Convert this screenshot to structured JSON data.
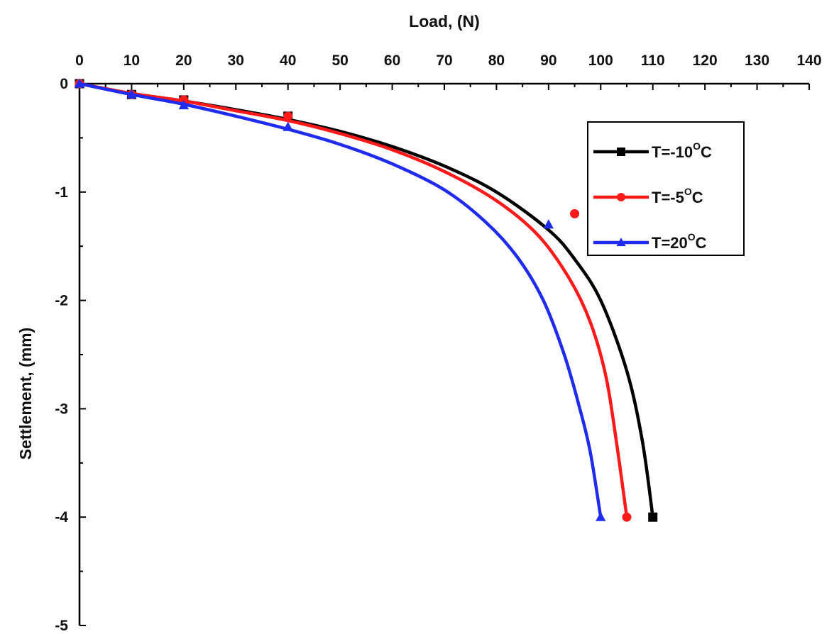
{
  "chart_data": {
    "type": "line",
    "xlabel": "Load, (N)",
    "ylabel": "Settlement, (mm)",
    "xlim": [
      0,
      140
    ],
    "ylim": [
      -5,
      0
    ],
    "x_axis_position": "top",
    "x_ticks": [
      0,
      10,
      20,
      30,
      40,
      50,
      60,
      70,
      80,
      90,
      100,
      110,
      120,
      130,
      140
    ],
    "y_ticks": [
      0,
      -1,
      -2,
      -3,
      -4,
      -5
    ],
    "grid": false,
    "legend_position": "top-right",
    "series": [
      {
        "name": "T=-10",
        "name_superscript": "O",
        "name_suffix": "C",
        "color": "#000000",
        "marker": "square",
        "marker_points": [
          [
            0,
            0
          ],
          [
            10,
            -0.1
          ],
          [
            20,
            -0.15
          ],
          [
            40,
            -0.3
          ],
          [
            110,
            -4
          ]
        ],
        "curve": [
          [
            0,
            0
          ],
          [
            10,
            -0.09
          ],
          [
            20,
            -0.16
          ],
          [
            30,
            -0.24
          ],
          [
            40,
            -0.33
          ],
          [
            50,
            -0.44
          ],
          [
            60,
            -0.58
          ],
          [
            70,
            -0.76
          ],
          [
            80,
            -1.0
          ],
          [
            90,
            -1.35
          ],
          [
            95,
            -1.62
          ],
          [
            100,
            -2.0
          ],
          [
            105,
            -2.65
          ],
          [
            108,
            -3.3
          ],
          [
            110,
            -4.0
          ]
        ]
      },
      {
        "name": "T=-5",
        "name_superscript": "O",
        "name_suffix": "C",
        "color": "#ff1a1a",
        "marker": "circle",
        "marker_points": [
          [
            0,
            0
          ],
          [
            10,
            -0.1
          ],
          [
            20,
            -0.15
          ],
          [
            40,
            -0.3
          ],
          [
            95,
            -1.2
          ],
          [
            105,
            -4
          ]
        ],
        "curve": [
          [
            0,
            0
          ],
          [
            10,
            -0.09
          ],
          [
            20,
            -0.16
          ],
          [
            30,
            -0.25
          ],
          [
            40,
            -0.34
          ],
          [
            50,
            -0.46
          ],
          [
            60,
            -0.61
          ],
          [
            70,
            -0.81
          ],
          [
            80,
            -1.08
          ],
          [
            88,
            -1.4
          ],
          [
            94,
            -1.8
          ],
          [
            98,
            -2.2
          ],
          [
            101,
            -2.7
          ],
          [
            103,
            -3.3
          ],
          [
            105,
            -4.0
          ]
        ]
      },
      {
        "name": "T=20",
        "name_superscript": "O",
        "name_suffix": "C",
        "color": "#1f2cf0",
        "marker": "triangle",
        "marker_points": [
          [
            0,
            0
          ],
          [
            10,
            -0.1
          ],
          [
            20,
            -0.2
          ],
          [
            40,
            -0.4
          ],
          [
            90,
            -1.3
          ],
          [
            100,
            -4
          ]
        ],
        "curve": [
          [
            0,
            0
          ],
          [
            10,
            -0.1
          ],
          [
            20,
            -0.19
          ],
          [
            30,
            -0.3
          ],
          [
            40,
            -0.42
          ],
          [
            50,
            -0.56
          ],
          [
            60,
            -0.74
          ],
          [
            70,
            -0.98
          ],
          [
            78,
            -1.28
          ],
          [
            84,
            -1.6
          ],
          [
            89,
            -2.0
          ],
          [
            93,
            -2.5
          ],
          [
            96,
            -3.0
          ],
          [
            98,
            -3.4
          ],
          [
            100,
            -4.0
          ]
        ]
      }
    ]
  }
}
